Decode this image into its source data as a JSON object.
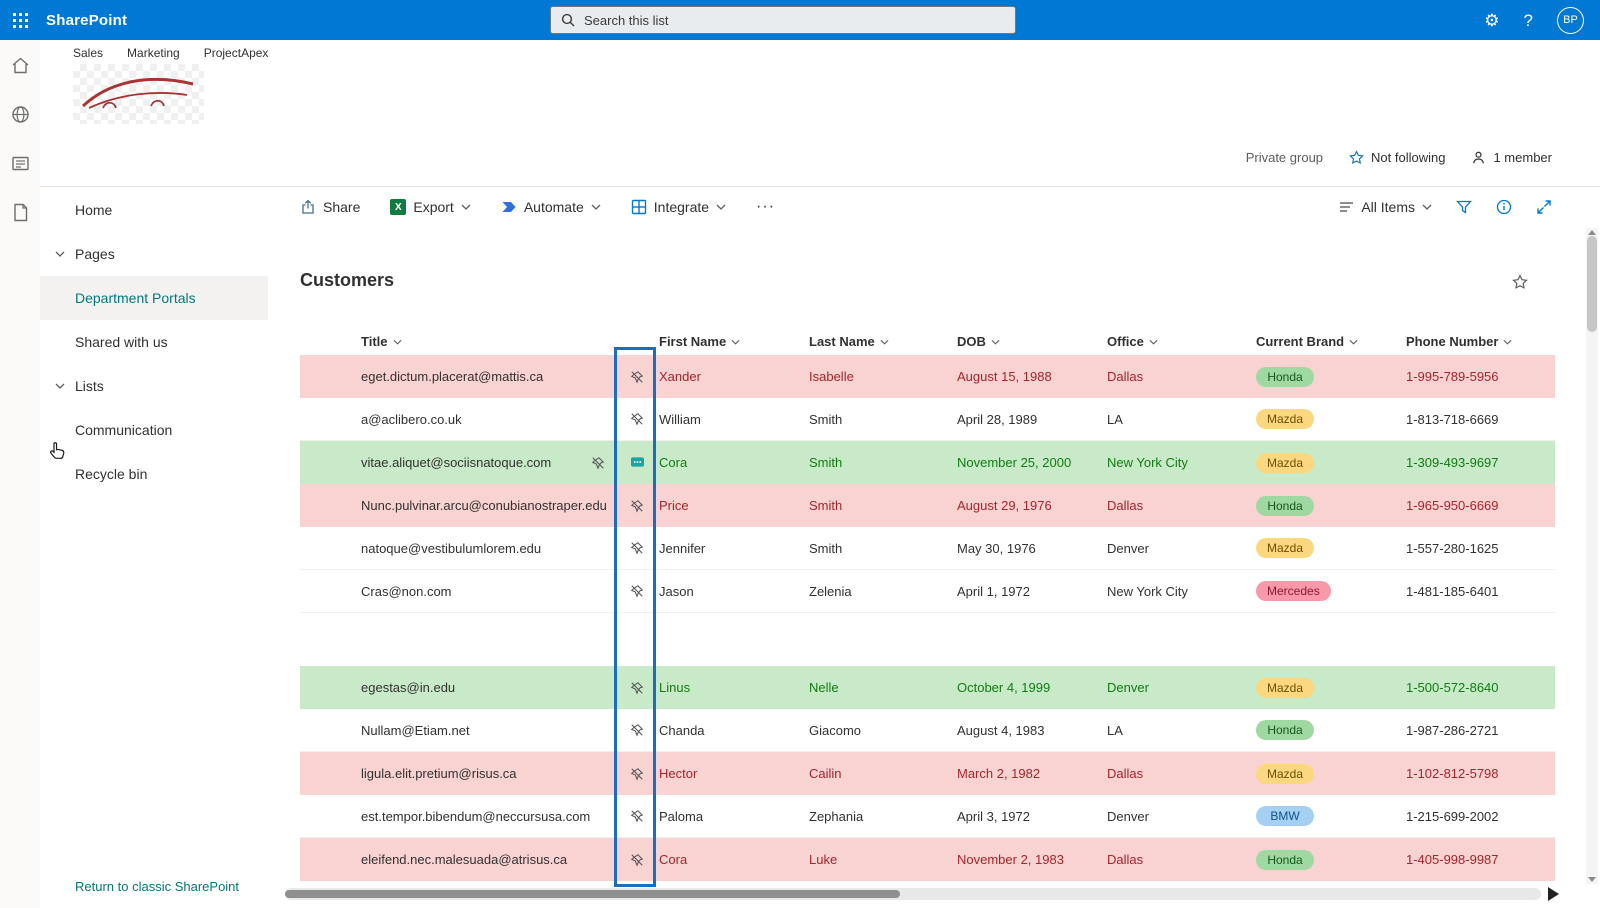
{
  "topbar": {
    "brand": "SharePoint",
    "search_placeholder": "Search this list",
    "avatar_initials": "BP"
  },
  "site_header": {
    "tabs": [
      "Sales",
      "Marketing",
      "ProjectApex"
    ],
    "private_group": "Private group",
    "following": "Not following",
    "members": "1 member"
  },
  "sidebar": {
    "items": [
      {
        "label": "Home"
      },
      {
        "label": "Pages",
        "chevron": true
      },
      {
        "label": "Department Portals",
        "active": true
      },
      {
        "label": "Shared with us"
      },
      {
        "label": "Lists",
        "chevron": true
      },
      {
        "label": "Communication"
      },
      {
        "label": "Recycle bin"
      }
    ],
    "footer_link": "Return to classic SharePoint"
  },
  "command_bar": {
    "share": "Share",
    "export": "Export",
    "automate": "Automate",
    "integrate": "Integrate",
    "overflow": "···",
    "view": "All Items"
  },
  "list": {
    "title": "Customers",
    "columns": [
      "Title",
      "First Name",
      "Last Name",
      "DOB",
      "Office",
      "Current Brand",
      "Phone Number"
    ],
    "brand_colors": {
      "Honda": "#a0d8a2",
      "Mazda": "#fbd87f",
      "Mercedes": "#f898a8",
      "BMW": "#a6d0f2"
    },
    "brand_text_colors": {
      "Honda": "#14571a",
      "Mazda": "#6b4f00",
      "Mercedes": "#8a1b2d",
      "BMW": "#12508c"
    },
    "rows": [
      {
        "type": "red",
        "title": "eget.dictum.placerat@mattis.ca",
        "first_name": "Xander",
        "last_name": "Isabelle",
        "dob": "August 15, 1988",
        "office": "Dallas",
        "brand": "Honda",
        "phone": "1-995-789-5956"
      },
      {
        "type": "plain",
        "title": "a@aclibero.co.uk",
        "first_name": "William",
        "last_name": "Smith",
        "dob": "April 28, 1989",
        "office": "LA",
        "brand": "Mazda",
        "phone": "1-813-718-6669"
      },
      {
        "type": "green",
        "title": "vitae.aliquet@sociisnatoque.com",
        "first_name": "Cora",
        "last_name": "Smith",
        "dob": "November 25, 2000",
        "office": "New York City",
        "brand": "Mazda",
        "phone": "1-309-493-9697",
        "has_comment": true
      },
      {
        "type": "red",
        "title": "Nunc.pulvinar.arcu@conubianostraper.edu",
        "first_name": "Price",
        "last_name": "Smith",
        "dob": "August 29, 1976",
        "office": "Dallas",
        "brand": "Honda",
        "phone": "1-965-950-6669"
      },
      {
        "type": "plain",
        "title": "natoque@vestibulumlorem.edu",
        "first_name": "Jennifer",
        "last_name": "Smith",
        "dob": "May 30, 1976",
        "office": "Denver",
        "brand": "Mazda",
        "phone": "1-557-280-1625"
      },
      {
        "type": "plain",
        "title": "Cras@non.com",
        "first_name": "Jason",
        "last_name": "Zelenia",
        "dob": "April 1, 1972",
        "office": "New York City",
        "brand": "Mercedes",
        "phone": "1-481-185-6401"
      },
      {
        "type": "spacer"
      },
      {
        "type": "green",
        "title": "egestas@in.edu",
        "first_name": "Linus",
        "last_name": "Nelle",
        "dob": "October 4, 1999",
        "office": "Denver",
        "brand": "Mazda",
        "phone": "1-500-572-8640"
      },
      {
        "type": "plain",
        "title": "Nullam@Etiam.net",
        "first_name": "Chanda",
        "last_name": "Giacomo",
        "dob": "August 4, 1983",
        "office": "LA",
        "brand": "Honda",
        "phone": "1-987-286-2721"
      },
      {
        "type": "red",
        "title": "ligula.elit.pretium@risus.ca",
        "first_name": "Hector",
        "last_name": "Cailin",
        "dob": "March 2, 1982",
        "office": "Dallas",
        "brand": "Mazda",
        "phone": "1-102-812-5798"
      },
      {
        "type": "plain",
        "title": "est.tempor.bibendum@neccursusa.com",
        "first_name": "Paloma",
        "last_name": "Zephania",
        "dob": "April 3, 1972",
        "office": "Denver",
        "brand": "BMW",
        "phone": "1-215-699-2002"
      },
      {
        "type": "red",
        "title": "eleifend.nec.malesuada@atrisus.ca",
        "first_name": "Cora",
        "last_name": "Luke",
        "dob": "November 2, 1983",
        "office": "Dallas",
        "brand": "Honda",
        "phone": "1-405-998-9987"
      }
    ]
  },
  "colors": {
    "topbar_blue": "#0078d4",
    "nav_teal": "#03787c",
    "row_red_bg": "#f9d2d2",
    "row_red_text": "#a4262c",
    "row_green_bg": "#c8eac8",
    "row_green_text": "#107c10",
    "annotation_blue": "#1b6dc1"
  },
  "icons": {
    "topbar": [
      "waffle-icon",
      "search-icon",
      "settings-gear-icon",
      "help-icon"
    ],
    "rail": [
      "home-icon",
      "globe-icon",
      "sites-icon",
      "document-icon"
    ],
    "command_bar": [
      "share-icon",
      "excel-icon",
      "automate-icon",
      "integrate-icon",
      "overflow-icon",
      "view-icon",
      "filter-icon",
      "info-icon",
      "expand-icon"
    ],
    "rows": [
      "pin-slash-icon",
      "comment-icon"
    ],
    "misc": [
      "star-icon",
      "person-icon",
      "cursor-hand-icon",
      "chevron-down-icon"
    ]
  }
}
